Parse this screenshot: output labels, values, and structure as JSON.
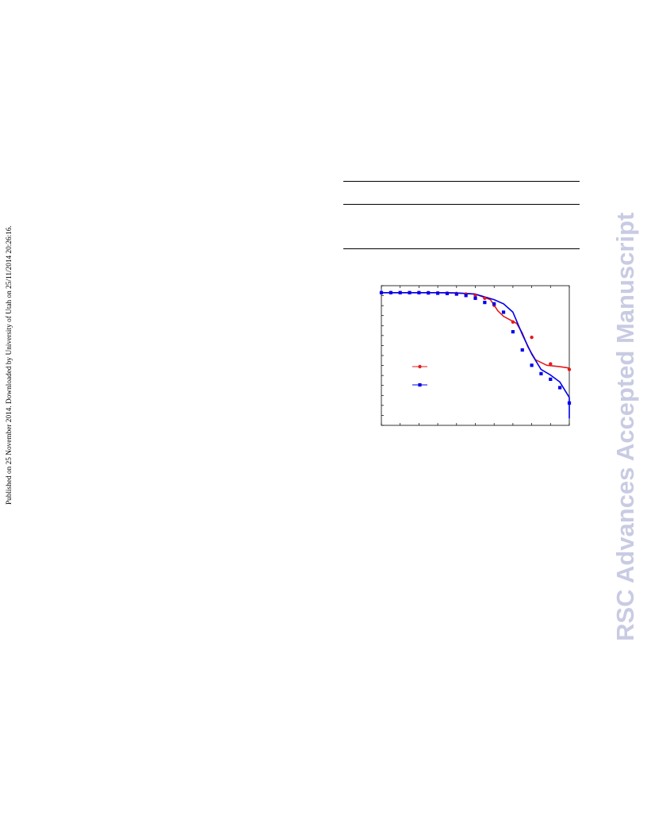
{
  "side_note": "Published on 25 November 2014. Downloaded by University of Utah on 25/11/2014 20:26:16.",
  "watermark": {
    "text": "RSC Advances Accepted Manuscript",
    "color": "#c9cbe3"
  },
  "chart_data": {
    "type": "line",
    "title": "",
    "xlabel": "",
    "ylabel": "",
    "x_tick_count": 11,
    "y_tick_count": 15,
    "xlim": [
      0,
      1
    ],
    "ylim": [
      0,
      1
    ],
    "grid": false,
    "legend": "center-left",
    "series": [
      {
        "marker": "circle",
        "color": "#e31a1c",
        "x": [
          0.0,
          0.1,
          0.2,
          0.3,
          0.4,
          0.5,
          0.6,
          0.7,
          0.8,
          0.9,
          1.0
        ],
        "y": [
          0.95,
          0.95,
          0.95,
          0.95,
          0.95,
          0.93,
          0.85,
          0.75,
          0.5,
          0.45,
          0.43
        ],
        "curve": [
          [
            0.0,
            0.95
          ],
          [
            0.1,
            0.95
          ],
          [
            0.2,
            0.95
          ],
          [
            0.3,
            0.95
          ],
          [
            0.4,
            0.948
          ],
          [
            0.5,
            0.94
          ],
          [
            0.58,
            0.9
          ],
          [
            0.62,
            0.82
          ],
          [
            0.65,
            0.78
          ],
          [
            0.72,
            0.73
          ],
          [
            0.75,
            0.66
          ],
          [
            0.78,
            0.56
          ],
          [
            0.82,
            0.47
          ],
          [
            0.88,
            0.43
          ],
          [
            0.95,
            0.42
          ],
          [
            1.0,
            0.41
          ]
        ],
        "markers": [
          [
            0.0,
            0.95
          ],
          [
            0.05,
            0.95
          ],
          [
            0.1,
            0.95
          ],
          [
            0.15,
            0.95
          ],
          [
            0.2,
            0.95
          ],
          [
            0.25,
            0.95
          ],
          [
            0.3,
            0.948
          ],
          [
            0.35,
            0.946
          ],
          [
            0.4,
            0.944
          ],
          [
            0.45,
            0.94
          ],
          [
            0.5,
            0.93
          ],
          [
            0.55,
            0.91
          ],
          [
            0.6,
            0.86
          ],
          [
            0.7,
            0.74
          ],
          [
            0.8,
            0.63
          ],
          [
            0.9,
            0.44
          ],
          [
            1.0,
            0.4
          ]
        ]
      },
      {
        "marker": "square",
        "color": "#0000ee",
        "curve": [
          [
            0.0,
            0.95
          ],
          [
            0.1,
            0.95
          ],
          [
            0.2,
            0.95
          ],
          [
            0.3,
            0.95
          ],
          [
            0.4,
            0.948
          ],
          [
            0.5,
            0.94
          ],
          [
            0.55,
            0.92
          ],
          [
            0.6,
            0.9
          ],
          [
            0.65,
            0.87
          ],
          [
            0.7,
            0.81
          ],
          [
            0.75,
            0.65
          ],
          [
            0.8,
            0.51
          ],
          [
            0.85,
            0.4
          ],
          [
            0.9,
            0.36
          ],
          [
            0.95,
            0.31
          ],
          [
            1.0,
            0.2
          ],
          [
            1.0,
            0.05
          ]
        ],
        "markers": [
          [
            0.0,
            0.95
          ],
          [
            0.05,
            0.95
          ],
          [
            0.1,
            0.95
          ],
          [
            0.15,
            0.95
          ],
          [
            0.2,
            0.95
          ],
          [
            0.25,
            0.948
          ],
          [
            0.3,
            0.946
          ],
          [
            0.35,
            0.944
          ],
          [
            0.4,
            0.94
          ],
          [
            0.45,
            0.93
          ],
          [
            0.5,
            0.91
          ],
          [
            0.55,
            0.88
          ],
          [
            0.6,
            0.87
          ],
          [
            0.65,
            0.81
          ],
          [
            0.7,
            0.67
          ],
          [
            0.75,
            0.54
          ],
          [
            0.8,
            0.43
          ],
          [
            0.85,
            0.37
          ],
          [
            0.9,
            0.33
          ],
          [
            0.95,
            0.27
          ],
          [
            1.0,
            0.16
          ]
        ]
      }
    ]
  }
}
